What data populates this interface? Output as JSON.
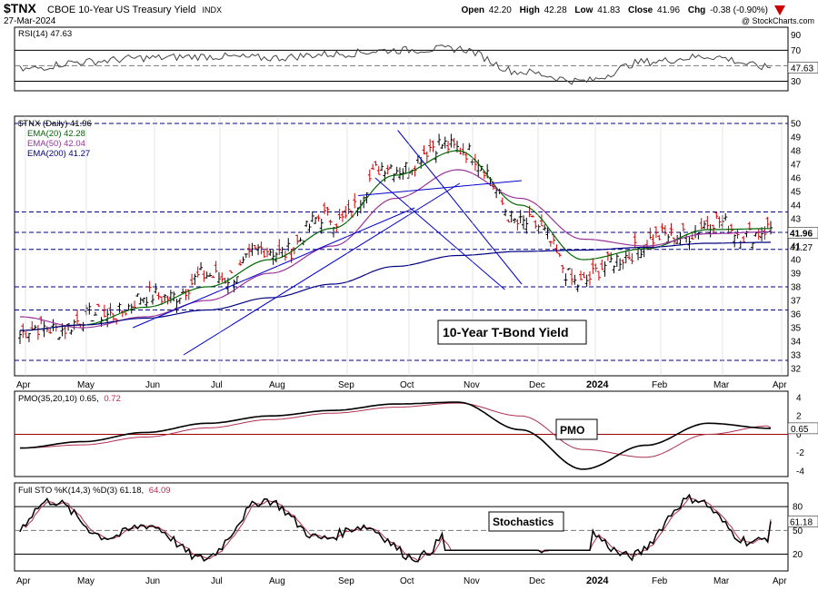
{
  "header": {
    "symbol": "$TNX",
    "name": "CBOE 10-Year US Treasury Yield",
    "exchange": "INDX",
    "date": "27-Mar-2024",
    "open_label": "Open",
    "open": "42.20",
    "high_label": "High",
    "high": "42.28",
    "low_label": "Low",
    "low": "41.83",
    "close_label": "Close",
    "close": "41.96",
    "chg_label": "Chg",
    "chg": "-0.38 (-0.90%)",
    "copyright": "@ StockCharts.com"
  },
  "colors": {
    "price_up": "#000000",
    "price_down": "#cc0000",
    "ema20": "#006600",
    "ema50": "#993399",
    "ema200": "#000080",
    "trendline": "#0000cc",
    "signal": "#b03050",
    "zero_line": "#990000"
  },
  "rsi_panel": {
    "legend": "RSI(14) 47.63",
    "last_value": "47.63",
    "ticks": [
      "90",
      "70",
      "50",
      "30"
    ]
  },
  "price_panel": {
    "legend_main": "$TNX (Daily) 41.96",
    "legend_ema20": "EMA(20) 42.28",
    "legend_ema50": "EMA(50) 42.04",
    "legend_ema200": "EMA(200) 41.27",
    "callout": "10-Year T-Bond Yield",
    "last_price": "41.96",
    "last_ema200": "41.27",
    "ticks": [
      "50",
      "49",
      "48",
      "47",
      "46",
      "45",
      "44",
      "43",
      "42",
      "41",
      "40",
      "39",
      "38",
      "37",
      "36",
      "35",
      "34",
      "33",
      "32"
    ]
  },
  "pmo_panel": {
    "legend_main": "PMO(35,20,10) 0.65,",
    "legend_signal": "0.72",
    "callout": "PMO",
    "last_value": "0.65",
    "ticks": [
      "4",
      "2",
      "0",
      "-2",
      "-4"
    ]
  },
  "sto_panel": {
    "legend_main": "Full STO %K(14,3) %D(3) 61.18,",
    "legend_signal": "64.09",
    "callout": "Stochastics",
    "last_value": "61.18",
    "ticks": [
      "80",
      "50",
      "20"
    ]
  },
  "x_axis": {
    "labels": [
      {
        "text": "Apr",
        "bold": false
      },
      {
        "text": "May",
        "bold": false
      },
      {
        "text": "Jun",
        "bold": false
      },
      {
        "text": "Jul",
        "bold": false
      },
      {
        "text": "Aug",
        "bold": false
      },
      {
        "text": "Sep",
        "bold": false
      },
      {
        "text": "Oct",
        "bold": false
      },
      {
        "text": "Nov",
        "bold": false
      },
      {
        "text": "Dec",
        "bold": false
      },
      {
        "text": "2024",
        "bold": true
      },
      {
        "text": "Feb",
        "bold": false
      },
      {
        "text": "Mar",
        "bold": false
      },
      {
        "text": "Apr",
        "bold": false
      }
    ]
  },
  "chart_data": {
    "type": "line",
    "x_months": [
      "Apr 2023",
      "May",
      "Jun",
      "Jul",
      "Aug",
      "Sep",
      "Oct",
      "Nov",
      "Dec",
      "Jan 2024",
      "Feb",
      "Mar",
      "Mar 27"
    ],
    "series": [
      {
        "name": "$TNX (Daily)",
        "values": [
          34.5,
          35.5,
          37.0,
          38.5,
          40.5,
          43.0,
          47.0,
          48.5,
          43.0,
          38.5,
          41.2,
          42.5,
          41.96
        ]
      },
      {
        "name": "EMA(20)",
        "values": [
          34.8,
          35.2,
          36.5,
          38.0,
          40.0,
          42.3,
          46.2,
          48.0,
          44.0,
          40.0,
          40.8,
          42.2,
          42.28
        ]
      },
      {
        "name": "EMA(50)",
        "values": [
          35.8,
          35.0,
          35.8,
          37.0,
          39.0,
          41.0,
          44.5,
          46.6,
          44.5,
          41.5,
          41.0,
          41.9,
          42.04
        ]
      },
      {
        "name": "EMA(200)",
        "values": [
          34.8,
          35.2,
          35.7,
          36.3,
          37.2,
          38.2,
          39.5,
          40.3,
          40.6,
          40.7,
          40.9,
          41.2,
          41.27
        ]
      }
    ],
    "ylim": [
      32,
      50.5
    ],
    "horizontal_levels": [
      50,
      43.5,
      42,
      40.75,
      38,
      36.3,
      32.6
    ],
    "rsi_last": 47.63,
    "pmo_last": 0.65,
    "pmo_signal_last": 0.72,
    "sto_k_last": 61.18,
    "sto_d_last": 64.09
  }
}
